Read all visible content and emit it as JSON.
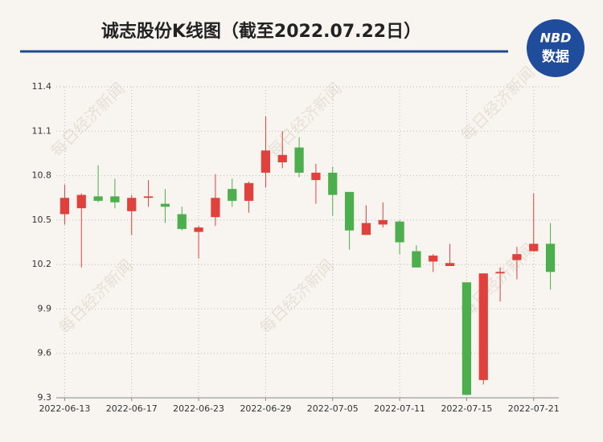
{
  "chart_data": {
    "type": "candlestick",
    "title": "诚志股份K线图（截至2022.07.22日）",
    "logo": {
      "top": "NBD",
      "bottom": "数据"
    },
    "watermark": "每日经济新闻",
    "categories": [
      "2022-06-13",
      null,
      null,
      null,
      "2022-06-17",
      null,
      null,
      null,
      "2022-06-23",
      null,
      null,
      null,
      "2022-06-29",
      null,
      null,
      null,
      "2022-07-05",
      null,
      null,
      null,
      "2022-07-11",
      null,
      null,
      null,
      "2022-07-15",
      null,
      null,
      null,
      "2022-07-21",
      null
    ],
    "open": [
      10.54,
      10.58,
      10.66,
      10.66,
      10.56,
      10.65,
      10.61,
      10.54,
      10.42,
      10.52,
      10.71,
      10.63,
      10.82,
      10.89,
      10.99,
      10.77,
      10.82,
      10.69,
      10.4,
      10.47,
      10.49,
      10.29,
      10.22,
      10.19,
      10.08,
      9.42,
      10.14,
      10.23,
      10.29,
      10.34
    ],
    "high": [
      10.74,
      10.68,
      10.87,
      10.78,
      10.67,
      10.77,
      10.71,
      10.59,
      10.46,
      10.81,
      10.78,
      10.76,
      11.2,
      11.1,
      11.06,
      10.88,
      10.86,
      10.69,
      10.6,
      10.62,
      10.5,
      10.33,
      10.27,
      10.34,
      10.08,
      10.14,
      10.18,
      10.32,
      10.68,
      10.48
    ],
    "low": [
      10.47,
      10.18,
      10.62,
      10.58,
      10.4,
      10.59,
      10.48,
      10.43,
      10.24,
      10.46,
      10.59,
      10.55,
      10.72,
      10.85,
      10.79,
      10.61,
      10.53,
      10.3,
      10.4,
      10.45,
      10.27,
      10.18,
      10.15,
      10.19,
      9.32,
      9.39,
      9.95,
      10.1,
      10.29,
      10.03
    ],
    "close": [
      10.65,
      10.67,
      10.63,
      10.62,
      10.65,
      10.66,
      10.59,
      10.44,
      10.45,
      10.65,
      10.63,
      10.75,
      10.97,
      10.94,
      10.82,
      10.82,
      10.67,
      10.43,
      10.48,
      10.5,
      10.35,
      10.18,
      10.26,
      10.21,
      9.32,
      10.14,
      10.15,
      10.27,
      10.34,
      10.15
    ],
    "up_color": "#e0413c",
    "down_color": "#4cae4c",
    "ylim": [
      9.3,
      11.4
    ],
    "yticks": [
      9.3,
      9.6,
      9.9,
      10.2,
      10.5,
      10.8,
      11.1,
      11.4
    ],
    "grid": true
  }
}
